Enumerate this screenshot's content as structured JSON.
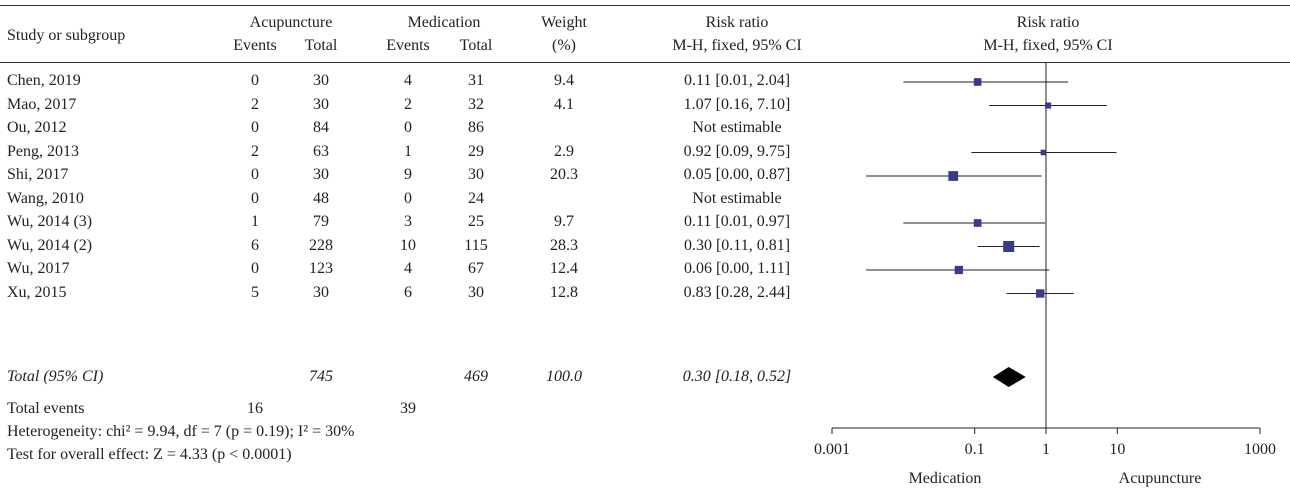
{
  "header": {
    "study": "Study or subgroup",
    "group1": "Acupuncture",
    "group2": "Medication",
    "events": "Events",
    "total": "Total",
    "weight": "Weight",
    "weight_unit": "(%)",
    "rr": "Risk ratio",
    "rr_method": "M-H, fixed, 95% CI",
    "plot_title": "Risk ratio",
    "plot_method": "M-H, fixed, 95% CI"
  },
  "footer": {
    "total_events_label": "Total events",
    "total_events_acu": "16",
    "total_events_med": "39",
    "heterogeneity": "Heterogeneity: chi² = 9.94, df = 7 (p = 0.19); I² = 30%",
    "overall_effect": "Test for overall effect: Z = 4.33 (p < 0.0001)",
    "favours_left": "Medication",
    "favours_right": "Acupuncture"
  },
  "chart_data": {
    "type": "forest",
    "scale": "log",
    "xlim": [
      0.001,
      1000
    ],
    "xticks": [
      "0.001",
      "0.1",
      "1",
      "10",
      "1000"
    ],
    "reference_line": 1,
    "studies": [
      {
        "name": "Chen, 2019",
        "acu_events": "0",
        "acu_total": "30",
        "med_events": "4",
        "med_total": "31",
        "weight": "9.4",
        "rr_text": "0.11 [0.01, 2.04]",
        "rr": 0.11,
        "lo": 0.01,
        "hi": 2.04,
        "w": 9.4
      },
      {
        "name": "Mao, 2017",
        "acu_events": "2",
        "acu_total": "30",
        "med_events": "2",
        "med_total": "32",
        "weight": "4.1",
        "rr_text": "1.07 [0.16, 7.10]",
        "rr": 1.07,
        "lo": 0.16,
        "hi": 7.1,
        "w": 4.1
      },
      {
        "name": "Ou, 2012",
        "acu_events": "0",
        "acu_total": "84",
        "med_events": "0",
        "med_total": "86",
        "weight": "",
        "rr_text": "Not estimable",
        "rr": null,
        "lo": null,
        "hi": null,
        "w": 0
      },
      {
        "name": "Peng, 2013",
        "acu_events": "2",
        "acu_total": "63",
        "med_events": "1",
        "med_total": "29",
        "weight": "2.9",
        "rr_text": "0.92 [0.09, 9.75]",
        "rr": 0.92,
        "lo": 0.09,
        "hi": 9.75,
        "w": 2.9
      },
      {
        "name": "Shi, 2017",
        "acu_events": "0",
        "acu_total": "30",
        "med_events": "9",
        "med_total": "30",
        "weight": "20.3",
        "rr_text": "0.05 [0.00, 0.87]",
        "rr": 0.05,
        "lo": 0.003,
        "hi": 0.87,
        "w": 20.3
      },
      {
        "name": "Wang, 2010",
        "acu_events": "0",
        "acu_total": "48",
        "med_events": "0",
        "med_total": "24",
        "weight": "",
        "rr_text": "Not estimable",
        "rr": null,
        "lo": null,
        "hi": null,
        "w": 0
      },
      {
        "name": "Wu, 2014 (3)",
        "acu_events": "1",
        "acu_total": "79",
        "med_events": "3",
        "med_total": "25",
        "weight": "9.7",
        "rr_text": "0.11 [0.01, 0.97]",
        "rr": 0.11,
        "lo": 0.01,
        "hi": 0.97,
        "w": 9.7
      },
      {
        "name": "Wu, 2014 (2)",
        "acu_events": "6",
        "acu_total": "228",
        "med_events": "10",
        "med_total": "115",
        "weight": "28.3",
        "rr_text": "0.30 [0.11, 0.81]",
        "rr": 0.3,
        "lo": 0.11,
        "hi": 0.81,
        "w": 28.3
      },
      {
        "name": "Wu, 2017",
        "acu_events": "0",
        "acu_total": "123",
        "med_events": "4",
        "med_total": "67",
        "weight": "12.4",
        "rr_text": "0.06 [0.00, 1.11]",
        "rr": 0.06,
        "lo": 0.003,
        "hi": 1.11,
        "w": 12.4
      },
      {
        "name": "Xu, 2015",
        "acu_events": "5",
        "acu_total": "30",
        "med_events": "6",
        "med_total": "30",
        "weight": "12.8",
        "rr_text": "0.83 [0.28, 2.44]",
        "rr": 0.83,
        "lo": 0.28,
        "hi": 2.44,
        "w": 12.8
      }
    ],
    "total": {
      "name": "Total (95% CI)",
      "acu_total": "745",
      "med_total": "469",
      "weight": "100.0",
      "rr_text": "0.30 [0.18, 0.52]",
      "rr": 0.3,
      "lo": 0.18,
      "hi": 0.52
    },
    "colors": {
      "marker": "#3a3a8c",
      "diamond": "#000000",
      "line": "#222222"
    }
  }
}
